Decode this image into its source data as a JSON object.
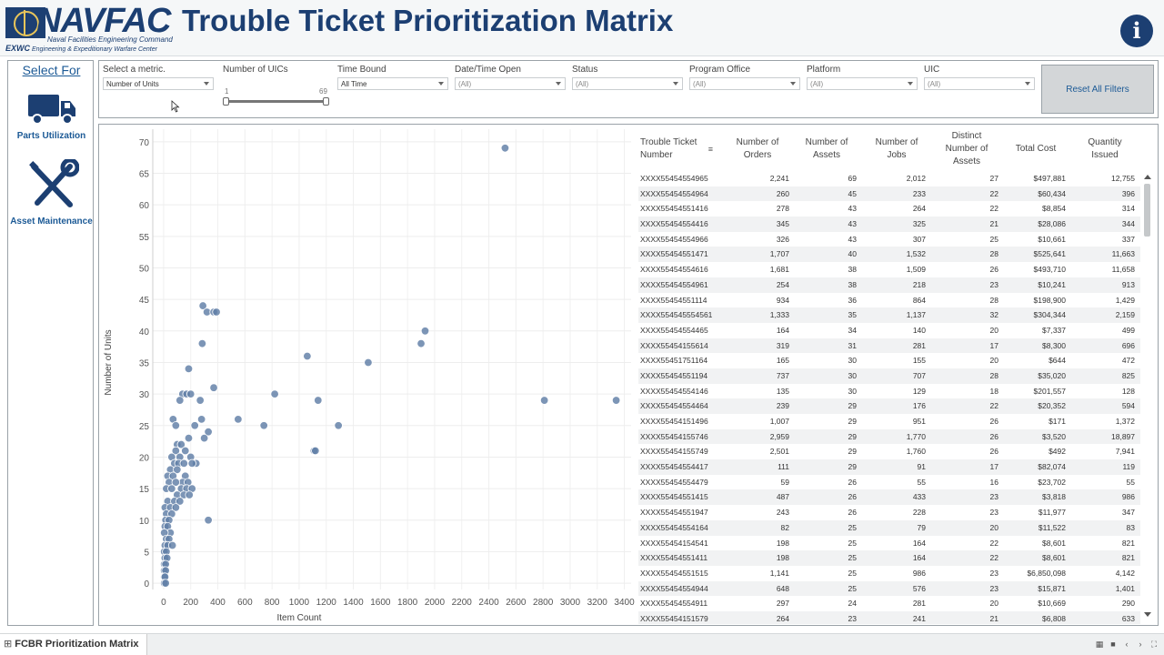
{
  "header": {
    "logo_text": "NAVFAC",
    "logo_sub1": "Naval Facilities Engineering Command",
    "logo_sub2_abbr": "EXWC",
    "logo_sub2": "Engineering & Expeditionary Warfare Center",
    "title": "Trouble Ticket Prioritization Matrix",
    "info_glyph": "i"
  },
  "sidebar": {
    "heading": "Select For",
    "items": [
      {
        "label": "Parts Utilization",
        "icon": "truck-icon"
      },
      {
        "label": "Asset Maintenance",
        "icon": "wrench-screwdriver-icon"
      }
    ]
  },
  "filters": {
    "metric": {
      "label": "Select a metric.",
      "value": "Number of Units"
    },
    "uic_count": {
      "label": "Number of UICs",
      "min": "1",
      "max": "69"
    },
    "time_bound": {
      "label": "Time Bound",
      "value": "All Time"
    },
    "date_open": {
      "label": "Date/Time Open",
      "value": "(All)"
    },
    "status": {
      "label": "Status",
      "value": "(All)"
    },
    "program_office": {
      "label": "Program Office",
      "value": "(All)"
    },
    "platform": {
      "label": "Platform",
      "value": "(All)"
    },
    "uic": {
      "label": "UIC",
      "value": "(All)"
    },
    "reset_label": "Reset All Filters"
  },
  "chart_data": {
    "type": "scatter",
    "xlabel": "Item Count",
    "ylabel": "Number of Units",
    "xlim": [
      -80,
      3450
    ],
    "ylim": [
      -1,
      72
    ],
    "xticks": [
      0,
      200,
      400,
      600,
      800,
      1000,
      1200,
      1400,
      1600,
      1800,
      2000,
      2200,
      2400,
      2600,
      2800,
      3000,
      3200,
      3400
    ],
    "yticks": [
      0,
      5,
      10,
      15,
      20,
      25,
      30,
      35,
      40,
      45,
      50,
      55,
      60,
      65,
      70
    ],
    "grid": true,
    "color": "#5f7ea6",
    "points": [
      [
        2520,
        69
      ],
      [
        290,
        44
      ],
      [
        320,
        43
      ],
      [
        370,
        43
      ],
      [
        390,
        43
      ],
      [
        1930,
        40
      ],
      [
        1900,
        38
      ],
      [
        285,
        38
      ],
      [
        1060,
        36
      ],
      [
        1510,
        35
      ],
      [
        185,
        34
      ],
      [
        370,
        31
      ],
      [
        820,
        30
      ],
      [
        140,
        30
      ],
      [
        170,
        30
      ],
      [
        200,
        30
      ],
      [
        120,
        29
      ],
      [
        270,
        29
      ],
      [
        1140,
        29
      ],
      [
        2810,
        29
      ],
      [
        3340,
        29
      ],
      [
        70,
        26
      ],
      [
        280,
        26
      ],
      [
        550,
        26
      ],
      [
        90,
        25
      ],
      [
        230,
        25
      ],
      [
        740,
        25
      ],
      [
        1290,
        25
      ],
      [
        330,
        24
      ],
      [
        300,
        23
      ],
      [
        185,
        23
      ],
      [
        1110,
        21
      ],
      [
        1120,
        21
      ],
      [
        100,
        22
      ],
      [
        130,
        22
      ],
      [
        160,
        21
      ],
      [
        90,
        21
      ],
      [
        60,
        20
      ],
      [
        120,
        20
      ],
      [
        200,
        20
      ],
      [
        240,
        19
      ],
      [
        80,
        19
      ],
      [
        110,
        19
      ],
      [
        150,
        19
      ],
      [
        210,
        19
      ],
      [
        50,
        18
      ],
      [
        100,
        18
      ],
      [
        160,
        17
      ],
      [
        30,
        17
      ],
      [
        70,
        17
      ],
      [
        140,
        16
      ],
      [
        180,
        16
      ],
      [
        40,
        16
      ],
      [
        90,
        16
      ],
      [
        130,
        15
      ],
      [
        170,
        15
      ],
      [
        210,
        15
      ],
      [
        20,
        15
      ],
      [
        60,
        15
      ],
      [
        100,
        14
      ],
      [
        150,
        14
      ],
      [
        190,
        14
      ],
      [
        30,
        13
      ],
      [
        80,
        13
      ],
      [
        120,
        13
      ],
      [
        10,
        12
      ],
      [
        50,
        12
      ],
      [
        90,
        12
      ],
      [
        20,
        11
      ],
      [
        60,
        11
      ],
      [
        15,
        10
      ],
      [
        40,
        10
      ],
      [
        330,
        10
      ],
      [
        10,
        9
      ],
      [
        30,
        9
      ],
      [
        50,
        8
      ],
      [
        5,
        8
      ],
      [
        20,
        7
      ],
      [
        40,
        7
      ],
      [
        10,
        6
      ],
      [
        30,
        6
      ],
      [
        65,
        6
      ],
      [
        5,
        5
      ],
      [
        20,
        5
      ],
      [
        10,
        4
      ],
      [
        25,
        4
      ],
      [
        5,
        3
      ],
      [
        15,
        3
      ],
      [
        5,
        2
      ],
      [
        15,
        2
      ],
      [
        5,
        1
      ],
      [
        10,
        1
      ],
      [
        5,
        0
      ],
      [
        15,
        0
      ]
    ]
  },
  "table": {
    "columns": [
      "Trouble Ticket Number",
      "Number of Orders",
      "Number of Assets",
      "Number of Jobs",
      "Distinct Number of Assets",
      "Total Cost",
      "Quantity Issued"
    ],
    "sort_icon": "sort-icon",
    "rows": [
      [
        "XXXX55454554965",
        "2,241",
        "69",
        "2,012",
        "27",
        "$497,881",
        "12,755"
      ],
      [
        "XXXX55454554964",
        "260",
        "45",
        "233",
        "22",
        "$60,434",
        "396"
      ],
      [
        "XXXX55454551416",
        "278",
        "43",
        "264",
        "22",
        "$8,854",
        "314"
      ],
      [
        "XXXX55454554416",
        "345",
        "43",
        "325",
        "21",
        "$28,086",
        "344"
      ],
      [
        "XXXX55454554966",
        "326",
        "43",
        "307",
        "25",
        "$10,661",
        "337"
      ],
      [
        "XXXX55454551471",
        "1,707",
        "40",
        "1,532",
        "28",
        "$525,641",
        "11,663"
      ],
      [
        "XXXX55454554616",
        "1,681",
        "38",
        "1,509",
        "26",
        "$493,710",
        "11,658"
      ],
      [
        "XXXX55454554961",
        "254",
        "38",
        "218",
        "23",
        "$10,241",
        "913"
      ],
      [
        "XXXX55454551114",
        "934",
        "36",
        "864",
        "28",
        "$198,900",
        "1,429"
      ],
      [
        "XXXX554545554561",
        "1,333",
        "35",
        "1,137",
        "32",
        "$304,344",
        "2,159"
      ],
      [
        "XXXX55454554465",
        "164",
        "34",
        "140",
        "20",
        "$7,337",
        "499"
      ],
      [
        "XXXX55454155614",
        "319",
        "31",
        "281",
        "17",
        "$8,300",
        "696"
      ],
      [
        "XXXX55451751164",
        "165",
        "30",
        "155",
        "20",
        "$644",
        "472"
      ],
      [
        "XXXX55454551194",
        "737",
        "30",
        "707",
        "28",
        "$35,020",
        "825"
      ],
      [
        "XXXX55454554146",
        "135",
        "30",
        "129",
        "18",
        "$201,557",
        "128"
      ],
      [
        "XXXX55454554464",
        "239",
        "29",
        "176",
        "22",
        "$20,352",
        "594"
      ],
      [
        "XXXX55454151496",
        "1,007",
        "29",
        "951",
        "26",
        "$171",
        "1,372"
      ],
      [
        "XXXX55454155746",
        "2,959",
        "29",
        "1,770",
        "26",
        "$3,520",
        "18,897"
      ],
      [
        "XXXX55454155749",
        "2,501",
        "29",
        "1,760",
        "26",
        "$492",
        "7,941"
      ],
      [
        "XXXX55454554417",
        "111",
        "29",
        "91",
        "17",
        "$82,074",
        "119"
      ],
      [
        "XXXX55454554479",
        "59",
        "26",
        "55",
        "16",
        "$23,702",
        "55"
      ],
      [
        "XXXX55454551415",
        "487",
        "26",
        "433",
        "23",
        "$3,818",
        "986"
      ],
      [
        "XXXX55454551947",
        "243",
        "26",
        "228",
        "23",
        "$11,977",
        "347"
      ],
      [
        "XXXX55454554164",
        "82",
        "25",
        "79",
        "20",
        "$11,522",
        "83"
      ],
      [
        "XXXX55454154541",
        "198",
        "25",
        "164",
        "22",
        "$8,601",
        "821"
      ],
      [
        "XXXX55454551411",
        "198",
        "25",
        "164",
        "22",
        "$8,601",
        "821"
      ],
      [
        "XXXX55454551515",
        "1,141",
        "25",
        "986",
        "23",
        "$6,850,098",
        "4,142"
      ],
      [
        "XXXX55454554944",
        "648",
        "25",
        "576",
        "23",
        "$15,871",
        "1,401"
      ],
      [
        "XXXX55454554911",
        "297",
        "24",
        "281",
        "20",
        "$10,669",
        "290"
      ],
      [
        "XXXX55454151579",
        "264",
        "23",
        "241",
        "21",
        "$6,808",
        "633"
      ]
    ]
  },
  "bottom": {
    "sheet_tab": "FCBR Prioritization Matrix",
    "sheet_glyph": "⊞"
  }
}
